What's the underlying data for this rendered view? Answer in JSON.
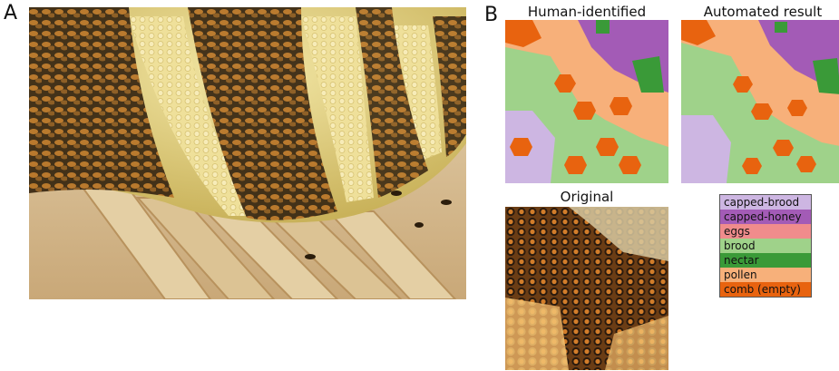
{
  "panels": {
    "a_label": "A",
    "b_label": "B"
  },
  "maps": {
    "human_title": "Human-identified",
    "auto_title": "Automated result",
    "original_title": "Original"
  },
  "legend": {
    "items": [
      {
        "label": "capped-brood",
        "color": "#cdb6e2"
      },
      {
        "label": "capped-honey",
        "color": "#a35bb6"
      },
      {
        "label": "eggs",
        "color": "#f08c8c"
      },
      {
        "label": "brood",
        "color": "#9fd28a"
      },
      {
        "label": "nectar",
        "color": "#3a9a38"
      },
      {
        "label": "pollen",
        "color": "#f7b07a"
      },
      {
        "label": "comb (empty)",
        "color": "#e8630f"
      }
    ]
  }
}
